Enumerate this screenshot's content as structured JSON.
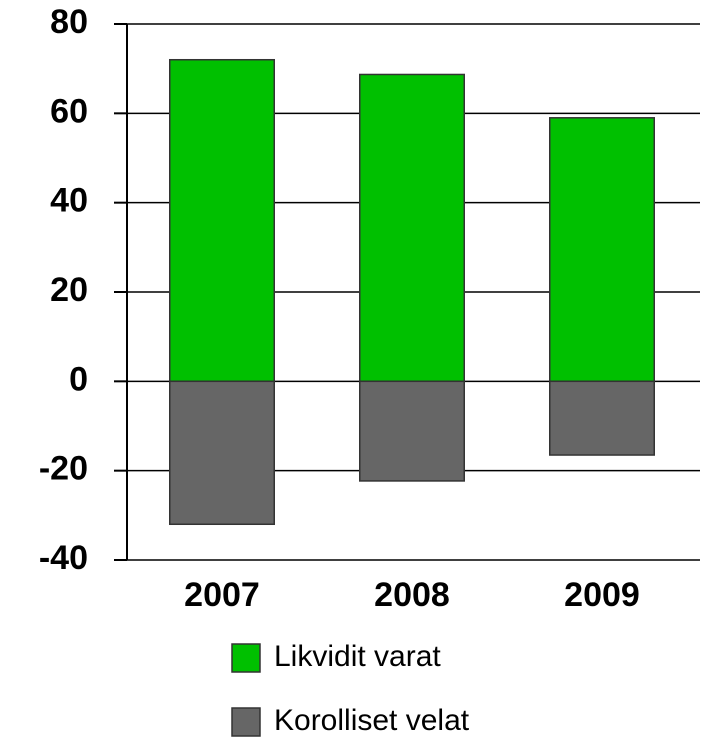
{
  "chart_data": {
    "type": "bar",
    "categories": [
      "2007",
      "2008",
      "2009"
    ],
    "series": [
      {
        "name": "Likvidit varat",
        "color": "#00c000",
        "values": [
          72,
          68.7,
          59
        ]
      },
      {
        "name": "Korolliset velat",
        "color": "#666666",
        "values": [
          -32,
          -22.3,
          -16.5
        ]
      }
    ],
    "ylim": [
      -40,
      80
    ],
    "yticks": [
      -40,
      -20,
      0,
      20,
      40,
      60,
      80
    ],
    "grid": true
  }
}
